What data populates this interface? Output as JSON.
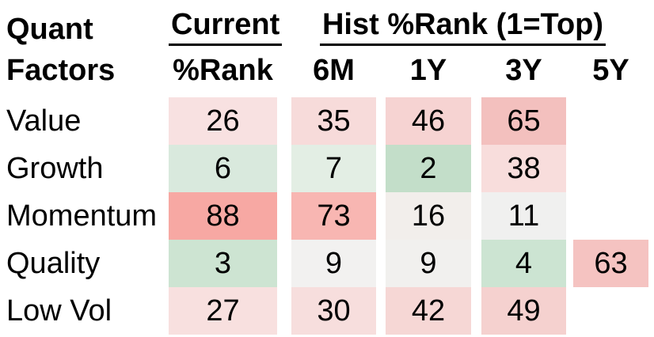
{
  "colors": {
    "background": "#ffffff",
    "text": "#000000",
    "underline": "#000000",
    "scale_green_strong": "#c3dec9",
    "scale_white_mid": "#f0f0ef",
    "scale_red_strong": "#f7a8a3"
  },
  "table": {
    "corner": {
      "line1": "Quant",
      "line2": "Factors"
    },
    "group_headers": {
      "current": "Current",
      "hist": "Hist %Rank (1=Top)"
    },
    "sub_headers": {
      "rank": "%Rank",
      "m6": "6M",
      "y1": "1Y",
      "y3": "3Y",
      "y5": "5Y"
    },
    "rows": [
      {
        "label": "Value",
        "cells": [
          {
            "value": "26",
            "bg": "#f8e1e1"
          },
          {
            "value": "35",
            "bg": "#f7dbda"
          },
          {
            "value": "46",
            "bg": "#f6d3d2"
          },
          {
            "value": "65",
            "bg": "#f3c0be"
          },
          {
            "value": "",
            "bg": "transparent"
          }
        ]
      },
      {
        "label": "Growth",
        "cells": [
          {
            "value": "6",
            "bg": "#d9e9dd"
          },
          {
            "value": "7",
            "bg": "#e3eee4"
          },
          {
            "value": "2",
            "bg": "#c3dec9"
          },
          {
            "value": "38",
            "bg": "#f8dddc"
          },
          {
            "value": "",
            "bg": "transparent"
          }
        ]
      },
      {
        "label": "Momentum",
        "cells": [
          {
            "value": "88",
            "bg": "#f7a8a3"
          },
          {
            "value": "73",
            "bg": "#f8b6b2"
          },
          {
            "value": "16",
            "bg": "#f2eeeb"
          },
          {
            "value": "11",
            "bg": "#f0f0ef"
          },
          {
            "value": "",
            "bg": "transparent"
          }
        ]
      },
      {
        "label": "Quality",
        "cells": [
          {
            "value": "3",
            "bg": "#cde4d2"
          },
          {
            "value": "9",
            "bg": "#f2f1f0"
          },
          {
            "value": "9",
            "bg": "#f1f0ee"
          },
          {
            "value": "4",
            "bg": "#cce4d2"
          },
          {
            "value": "63",
            "bg": "#f5c3c1"
          }
        ]
      },
      {
        "label": "Low Vol",
        "cells": [
          {
            "value": "27",
            "bg": "#f8e0df"
          },
          {
            "value": "30",
            "bg": "#f7dedd"
          },
          {
            "value": "42",
            "bg": "#f6d7d5"
          },
          {
            "value": "49",
            "bg": "#f5d1cf"
          },
          {
            "value": "",
            "bg": "transparent"
          }
        ]
      }
    ]
  },
  "chart_data": {
    "type": "heatmap",
    "title": "Quant Factors",
    "column_groups": [
      "Current",
      "Hist %Rank (1=Top)"
    ],
    "columns": [
      "Current %Rank",
      "6M",
      "1Y",
      "3Y",
      "5Y"
    ],
    "rows": [
      "Value",
      "Growth",
      "Momentum",
      "Quality",
      "Low Vol"
    ],
    "values": [
      [
        26,
        35,
        46,
        65,
        null
      ],
      [
        6,
        7,
        2,
        38,
        null
      ],
      [
        88,
        73,
        16,
        11,
        null
      ],
      [
        3,
        9,
        9,
        4,
        63
      ],
      [
        27,
        30,
        42,
        49,
        null
      ]
    ],
    "scale_note": "1 = top rank; green = low value (strong), white = mid (~10-15), red = high value (weak)",
    "legend_position": "none",
    "grid": false
  }
}
